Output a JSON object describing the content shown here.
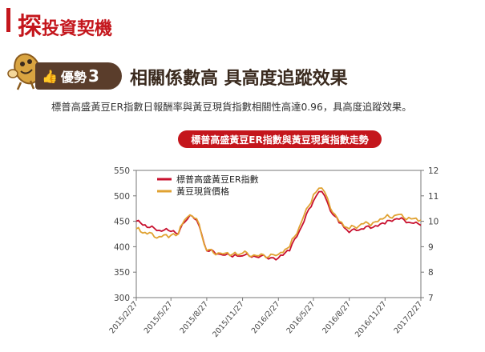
{
  "header": {
    "title_first": "探",
    "title_rest": "投資契機"
  },
  "advantage": {
    "label": "優勢",
    "number": "3",
    "headline": "相關係數高 具高度追蹤效果"
  },
  "description": "標普高盛黃豆ER指數日報酬率與黃豆現貨指數相關性高達0.96，具高度追蹤效果。",
  "icons": {
    "mascot": "soybean-mascot-icon",
    "thumb": "thumb-up-icon"
  },
  "colors": {
    "brand": "#c4161c",
    "badge": "#5a3d2b",
    "series_er": "#c8102e",
    "series_spot": "#e0a232"
  },
  "chart_data": {
    "type": "line",
    "title": "標普高盛黃豆ER指數與黃豆現貨指數走勢",
    "x_ticks": [
      "2015/2/27",
      "2015/5/27",
      "2015/8/27",
      "2015/11/27",
      "2016/2/27",
      "2016/5/27",
      "2016/8/27",
      "2016/11/27",
      "2017/2/27"
    ],
    "ylim_left": [
      300,
      550
    ],
    "left_ticks": [
      "300",
      "350",
      "400",
      "450",
      "500",
      "550"
    ],
    "ylim_right": [
      7,
      12
    ],
    "right_ticks": [
      "7",
      "8",
      "9",
      "10",
      "11",
      "12"
    ],
    "legend_position": "top-left",
    "grid": false,
    "series": [
      {
        "name": "標普高盛黃豆ER指數",
        "axis": "left",
        "x": [
          "2015/2/27",
          "2015/3/27",
          "2015/4/27",
          "2015/5/27",
          "2015/6/15",
          "2015/7/1",
          "2015/7/15",
          "2015/8/1",
          "2015/8/27",
          "2015/10/1",
          "2015/11/1",
          "2015/11/27",
          "2016/1/1",
          "2016/2/27",
          "2016/3/27",
          "2016/4/27",
          "2016/5/27",
          "2016/6/10",
          "2016/6/25",
          "2016/7/10",
          "2016/8/1",
          "2016/8/27",
          "2016/9/27",
          "2016/10/27",
          "2016/11/27",
          "2016/12/27",
          "2017/1/27",
          "2017/2/27"
        ],
        "values": [
          450,
          438,
          432,
          430,
          425,
          448,
          462,
          452,
          392,
          385,
          380,
          382,
          380,
          378,
          392,
          440,
          490,
          508,
          500,
          470,
          447,
          428,
          435,
          438,
          445,
          455,
          448,
          442
        ]
      },
      {
        "name": "黃豆現貨價格",
        "axis": "right",
        "x": [
          "2015/2/27",
          "2015/3/27",
          "2015/4/27",
          "2015/5/27",
          "2015/6/15",
          "2015/7/1",
          "2015/7/15",
          "2015/8/1",
          "2015/8/27",
          "2015/10/1",
          "2015/11/1",
          "2015/11/27",
          "2016/1/1",
          "2016/2/27",
          "2016/3/27",
          "2016/4/27",
          "2016/5/27",
          "2016/6/10",
          "2016/6/25",
          "2016/7/10",
          "2016/8/1",
          "2016/8/27",
          "2016/9/27",
          "2016/10/27",
          "2016/11/27",
          "2016/12/27",
          "2017/1/27",
          "2017/2/27"
        ],
        "values": [
          9.7,
          9.5,
          9.4,
          9.45,
          9.5,
          10.05,
          10.25,
          10.1,
          8.85,
          8.75,
          8.7,
          8.75,
          8.65,
          8.7,
          9.0,
          10.0,
          11.05,
          11.3,
          11.15,
          10.5,
          10.0,
          9.7,
          9.9,
          9.95,
          10.15,
          10.25,
          10.15,
          10.05
        ]
      }
    ]
  }
}
